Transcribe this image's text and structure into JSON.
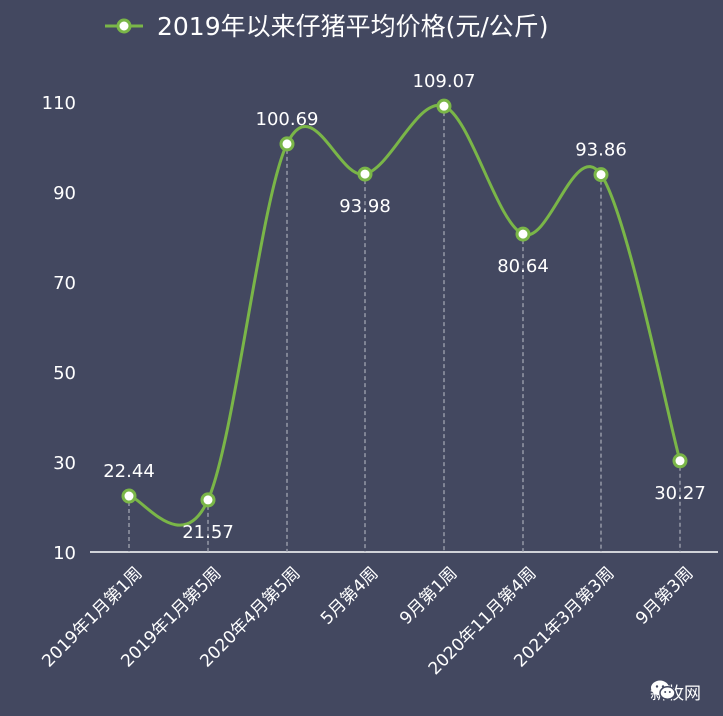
{
  "chart_data": {
    "type": "line",
    "title": "2019年以来仔猪平均价格(元/公斤)",
    "categories": [
      "2019年1月第1周",
      "2019年1月第5周",
      "2020年4月第5周",
      "5月第4周",
      "9月第1周",
      "2020年11月第4周",
      "2021年3月第3周",
      "9月第3周"
    ],
    "series": [
      {
        "name": "2019年以来仔猪平均价格(元/公斤)",
        "values": [
          22.44,
          21.57,
          100.69,
          93.98,
          109.07,
          80.64,
          93.86,
          30.27
        ]
      }
    ],
    "data_labels": [
      "22.44",
      "21.57",
      "100.69",
      "93.98",
      "109.07",
      "80.64",
      "93.86",
      "30.27"
    ],
    "label_positions": [
      "above",
      "below",
      "above",
      "below",
      "above",
      "below",
      "above",
      "below"
    ],
    "yticks": [
      "10",
      "30",
      "50",
      "70",
      "90",
      "110"
    ],
    "ylim": [
      10,
      110
    ],
    "grid": false,
    "legend": "top",
    "colors": {
      "background": "#434860",
      "line": "#7ab648",
      "text": "#ffffff",
      "axis": "#ffffff",
      "dropline": "#a9acb8"
    }
  },
  "watermark": {
    "text": "新牧网",
    "icon": "wechat-icon"
  }
}
